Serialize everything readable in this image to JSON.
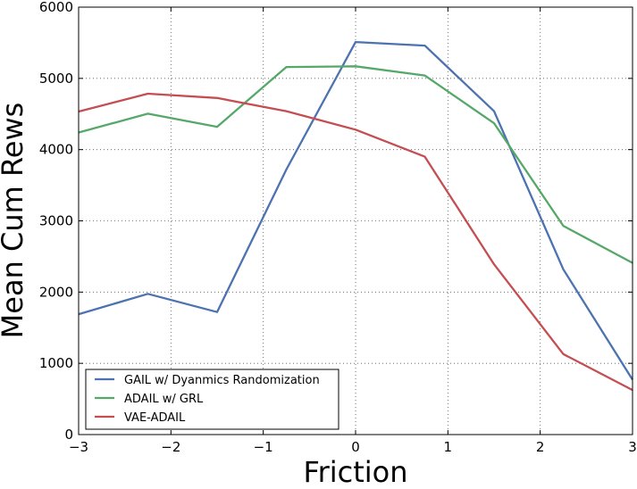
{
  "chart_data": {
    "type": "line",
    "title": "",
    "xlabel": "Friction",
    "ylabel": "Mean Cum Rews",
    "xlim": [
      -3,
      3
    ],
    "ylim": [
      0,
      6000
    ],
    "xticks": [
      -3,
      -2,
      -1,
      0,
      1,
      2,
      3
    ],
    "xtick_labels": [
      "−3",
      "−2",
      "−1",
      "0",
      "1",
      "2",
      "3"
    ],
    "yticks": [
      0,
      1000,
      2000,
      3000,
      4000,
      5000,
      6000
    ],
    "ytick_labels": [
      "0",
      "1000",
      "2000",
      "3000",
      "4000",
      "5000",
      "6000"
    ],
    "grid": true,
    "legend_position": "bottom-left",
    "x": [
      -3,
      -2.25,
      -1.5,
      -0.75,
      0,
      0.75,
      1.5,
      2.25,
      3
    ],
    "series": [
      {
        "name": "GAIL w/ Dyanmics Randomization",
        "color": "#4c72b0",
        "values": [
          1690,
          1975,
          1720,
          3720,
          5510,
          5460,
          4540,
          2320,
          770
        ]
      },
      {
        "name": "ADAIL w/ GRL",
        "color": "#55a868",
        "values": [
          4240,
          4505,
          4320,
          5160,
          5170,
          5040,
          4370,
          2930,
          2410
        ]
      },
      {
        "name": "VAE-ADAIL",
        "color": "#c44e52",
        "values": [
          4535,
          4785,
          4725,
          4540,
          4280,
          3900,
          2390,
          1130,
          625
        ]
      }
    ]
  }
}
